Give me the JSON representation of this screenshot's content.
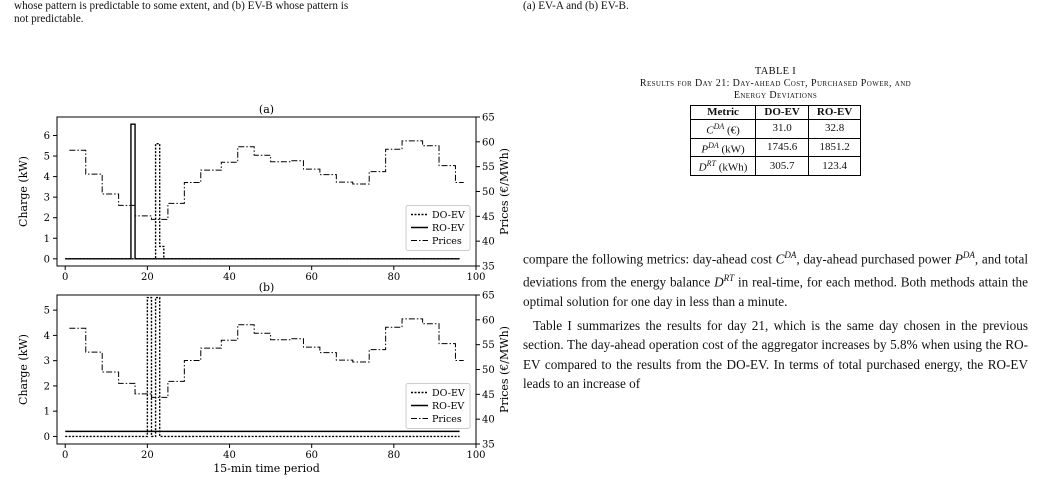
{
  "left_text": {
    "line1": "whose pattern is predictable to some extent, and (b) EV-B whose pattern is",
    "line2": "not predictable."
  },
  "right_text": {
    "line1": "(a) EV-A and (b) EV-B."
  },
  "table": {
    "label": "TABLE I",
    "title_line1": "Results for Day 21: Day-ahead Cost, Purchased Power, and",
    "title_line2": "Energy Deviations",
    "headers": [
      "Metric",
      "DO-EV",
      "RO-EV"
    ],
    "rows": [
      {
        "metric_sym": "C",
        "metric_sup": "DA",
        "metric_unit": " (€)",
        "do_ev": "31.0",
        "ro_ev": "32.8"
      },
      {
        "metric_sym": "P",
        "metric_sup": "DA",
        "metric_unit": " (kW)",
        "do_ev": "1745.6",
        "ro_ev": "1851.2"
      },
      {
        "metric_sym": "D",
        "metric_sup": "RT",
        "metric_unit": " (kWh)",
        "do_ev": "305.7",
        "ro_ev": "123.4"
      }
    ]
  },
  "body": {
    "p1_a": "compare the following metrics: day-ahead cost ",
    "p1_b": ", day-ahead purchased power ",
    "p1_c": ", and total deviations from the energy balance ",
    "p1_d": " in real-time, for each method. Both methods attain the optimal solution for one day in less than a minute.",
    "p2": "Table I summarizes the results for day 21, which is the same day chosen in the previous section. The day-ahead operation cost of the aggregator increases by 5.8% when using the RO-EV compared to the results from the DO-EV. In terms of total purchased energy, the RO-EV leads to an increase of"
  },
  "chart_data": [
    {
      "type": "line",
      "title": "(a)",
      "xlabel": "",
      "ylabel": "Charge (kW)",
      "y2label": "Prices (€/MWh)",
      "xlim": [
        -2,
        100
      ],
      "ylim": [
        -0.35,
        6.9
      ],
      "y2lim": [
        35,
        65
      ],
      "xticks": [
        0,
        20,
        40,
        60,
        80,
        100
      ],
      "yticks": [
        0,
        1,
        2,
        3,
        4,
        5,
        6
      ],
      "y2ticks": [
        35,
        40,
        45,
        50,
        55,
        60,
        65
      ],
      "legend_placement": "center-right",
      "series": [
        {
          "name": "DO-EV",
          "style": "dotted",
          "axis": "left",
          "points": [
            [
              0,
              0
            ],
            [
              22,
              0
            ],
            [
              22,
              5.6
            ],
            [
              23,
              5.6
            ],
            [
              23,
              0.6
            ],
            [
              24,
              0.6
            ],
            [
              24,
              0
            ],
            [
              96,
              0
            ]
          ]
        },
        {
          "name": "RO-EV",
          "style": "solid",
          "axis": "left",
          "points": [
            [
              0,
              0
            ],
            [
              16,
              0
            ],
            [
              16,
              6.55
            ],
            [
              17,
              6.55
            ],
            [
              17,
              0
            ],
            [
              96,
              0
            ]
          ]
        },
        {
          "name": "Prices",
          "style": "dashdot",
          "axis": "right",
          "steps": [
            [
              1,
              58.3
            ],
            [
              5,
              53.5
            ],
            [
              9,
              49.5
            ],
            [
              13,
              47.2
            ],
            [
              17,
              45.1
            ],
            [
              21,
              44.4
            ],
            [
              25,
              47.6
            ],
            [
              29,
              51.8
            ],
            [
              33,
              54.3
            ],
            [
              38,
              55.9
            ],
            [
              42,
              59
            ],
            [
              46,
              57.3
            ],
            [
              50,
              56
            ],
            [
              55,
              56.2
            ],
            [
              58,
              54.5
            ],
            [
              62,
              53.4
            ],
            [
              66,
              51.9
            ],
            [
              70,
              51.5
            ],
            [
              74,
              54
            ],
            [
              78,
              58.5
            ],
            [
              82,
              60.2
            ],
            [
              87,
              59.2
            ],
            [
              91,
              55.2
            ],
            [
              95,
              51.8
            ]
          ],
          "x_end": 97
        }
      ]
    },
    {
      "type": "line",
      "title": "(b)",
      "xlabel": "15-min time period",
      "ylabel": "Charge (kW)",
      "y2label": "Prices (€/MWh)",
      "xlim": [
        -2,
        100
      ],
      "ylim": [
        -0.3,
        5.6
      ],
      "y2lim": [
        35,
        65
      ],
      "xticks": [
        0,
        20,
        40,
        60,
        80,
        100
      ],
      "yticks": [
        0,
        1,
        2,
        3,
        4,
        5
      ],
      "y2ticks": [
        35,
        40,
        45,
        50,
        55,
        60,
        65
      ],
      "legend_placement": "center-right",
      "series": [
        {
          "name": "DO-EV",
          "style": "dotted",
          "axis": "left",
          "points": [
            [
              0,
              0
            ],
            [
              20,
              0
            ],
            [
              20,
              5.5
            ],
            [
              21,
              5.5
            ],
            [
              21,
              0
            ],
            [
              22,
              0
            ],
            [
              22,
              5.5
            ],
            [
              23,
              5.5
            ],
            [
              23,
              0
            ],
            [
              96,
              0
            ]
          ]
        },
        {
          "name": "RO-EV",
          "style": "solid",
          "axis": "left",
          "points": [
            [
              0,
              0.2
            ],
            [
              96,
              0.2
            ]
          ]
        },
        {
          "name": "Prices",
          "style": "dashdot",
          "axis": "right",
          "steps": [
            [
              1,
              58.3
            ],
            [
              5,
              53.5
            ],
            [
              9,
              49.5
            ],
            [
              13,
              47.2
            ],
            [
              17,
              45.1
            ],
            [
              21,
              44.4
            ],
            [
              25,
              47.6
            ],
            [
              29,
              51.8
            ],
            [
              33,
              54.3
            ],
            [
              38,
              55.9
            ],
            [
              42,
              59
            ],
            [
              46,
              57.3
            ],
            [
              50,
              56
            ],
            [
              55,
              56.2
            ],
            [
              58,
              54.5
            ],
            [
              62,
              53.4
            ],
            [
              66,
              51.9
            ],
            [
              70,
              51.5
            ],
            [
              74,
              54
            ],
            [
              78,
              58.5
            ],
            [
              82,
              60.2
            ],
            [
              87,
              59.2
            ],
            [
              91,
              55.2
            ],
            [
              95,
              51.8
            ]
          ],
          "x_end": 97
        }
      ]
    }
  ]
}
